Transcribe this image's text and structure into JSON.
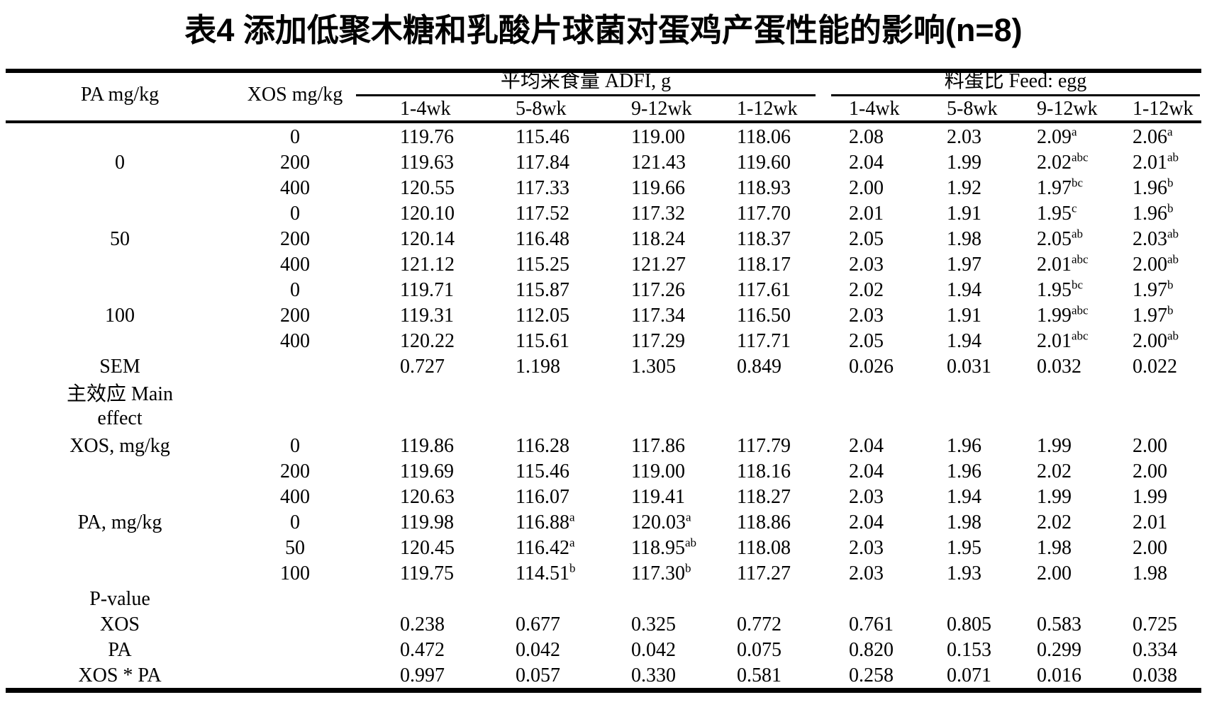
{
  "title": "表4 添加低聚木糖和乳酸片球菌对蛋鸡产蛋性能的影响(n=8)",
  "header": {
    "pa": "PA mg/kg",
    "xos": "XOS mg/kg",
    "group_adfi": "平均采食量 ADFI, g",
    "group_feed_egg": "料蛋比 Feed: egg",
    "week_cols": [
      "1-4wk",
      "5-8wk",
      "9-12wk",
      "1-12wk",
      "1-4wk",
      "5-8wk",
      "9-12wk",
      "1-12wk"
    ]
  },
  "rows": [
    {
      "pa": "",
      "xos": "0",
      "cells": [
        "119.76",
        "115.46",
        "119.00",
        "118.06",
        "2.08",
        "2.03",
        "2.09^a",
        "2.06^a"
      ]
    },
    {
      "pa": "0",
      "xos": "200",
      "cells": [
        "119.63",
        "117.84",
        "121.43",
        "119.60",
        "2.04",
        "1.99",
        "2.02^abc",
        "2.01^ab"
      ]
    },
    {
      "pa": "",
      "xos": "400",
      "cells": [
        "120.55",
        "117.33",
        "119.66",
        "118.93",
        "2.00",
        "1.92",
        "1.97^bc",
        "1.96^b"
      ]
    },
    {
      "pa": "",
      "xos": "0",
      "cells": [
        "120.10",
        "117.52",
        "117.32",
        "117.70",
        "2.01",
        "1.91",
        "1.95^c",
        "1.96^b"
      ]
    },
    {
      "pa": "50",
      "xos": "200",
      "cells": [
        "120.14",
        "116.48",
        "118.24",
        "118.37",
        "2.05",
        "1.98",
        "2.05^ab",
        "2.03^ab"
      ]
    },
    {
      "pa": "",
      "xos": "400",
      "cells": [
        "121.12",
        "115.25",
        "121.27",
        "118.17",
        "2.03",
        "1.97",
        "2.01^abc",
        "2.00^ab"
      ]
    },
    {
      "pa": "",
      "xos": "0",
      "cells": [
        "119.71",
        "115.87",
        "117.26",
        "117.61",
        "2.02",
        "1.94",
        "1.95^bc",
        "1.97^b"
      ]
    },
    {
      "pa": "100",
      "xos": "200",
      "cells": [
        "119.31",
        "112.05",
        "117.34",
        "116.50",
        "2.03",
        "1.91",
        "1.99^abc",
        "1.97^b"
      ]
    },
    {
      "pa": "",
      "xos": "400",
      "cells": [
        "120.22",
        "115.61",
        "117.29",
        "117.71",
        "2.05",
        "1.94",
        "2.01^abc",
        "2.00^ab"
      ]
    },
    {
      "pa": "SEM",
      "xos": "",
      "cells": [
        "0.727",
        "1.198",
        "1.305",
        "0.849",
        "0.026",
        "0.031",
        "0.032",
        "0.022"
      ]
    },
    {
      "pa": "主效应 Main\neffect",
      "xos": "",
      "tall": true,
      "cells": [
        "",
        "",
        "",
        "",
        "",
        "",
        "",
        ""
      ]
    },
    {
      "pa": "XOS, mg/kg",
      "xos": "0",
      "cells": [
        "119.86",
        "116.28",
        "117.86",
        "117.79",
        "2.04",
        "1.96",
        "1.99",
        "2.00"
      ]
    },
    {
      "pa": "",
      "xos": "200",
      "cells": [
        "119.69",
        "115.46",
        "119.00",
        "118.16",
        "2.04",
        "1.96",
        "2.02",
        "2.00"
      ]
    },
    {
      "pa": "",
      "xos": "400",
      "cells": [
        "120.63",
        "116.07",
        "119.41",
        "118.27",
        "2.03",
        "1.94",
        "1.99",
        "1.99"
      ]
    },
    {
      "pa": "PA, mg/kg",
      "xos": "0",
      "cells": [
        "119.98",
        "116.88^a",
        "120.03^a",
        "118.86",
        "2.04",
        "1.98",
        "2.02",
        "2.01"
      ]
    },
    {
      "pa": "",
      "xos": "50",
      "cells": [
        "120.45",
        "116.42^a",
        "118.95^ab",
        "118.08",
        "2.03",
        "1.95",
        "1.98",
        "2.00"
      ]
    },
    {
      "pa": "",
      "xos": "100",
      "cells": [
        "119.75",
        "114.51^b",
        "117.30^b",
        "117.27",
        "2.03",
        "1.93",
        "2.00",
        "1.98"
      ]
    },
    {
      "pa": "P-value",
      "xos": "",
      "cells": [
        "",
        "",
        "",
        "",
        "",
        "",
        "",
        ""
      ]
    },
    {
      "pa": "XOS",
      "xos": "",
      "cells": [
        "0.238",
        "0.677",
        "0.325",
        "0.772",
        "0.761",
        "0.805",
        "0.583",
        "0.725"
      ]
    },
    {
      "pa": "PA",
      "xos": "",
      "cells": [
        "0.472",
        "0.042",
        "0.042",
        "0.075",
        "0.820",
        "0.153",
        "0.299",
        "0.334"
      ]
    },
    {
      "pa": "XOS * PA",
      "xos": "",
      "cells": [
        "0.997",
        "0.057",
        "0.330",
        "0.581",
        "0.258",
        "0.071",
        "0.016",
        "0.038"
      ]
    }
  ]
}
